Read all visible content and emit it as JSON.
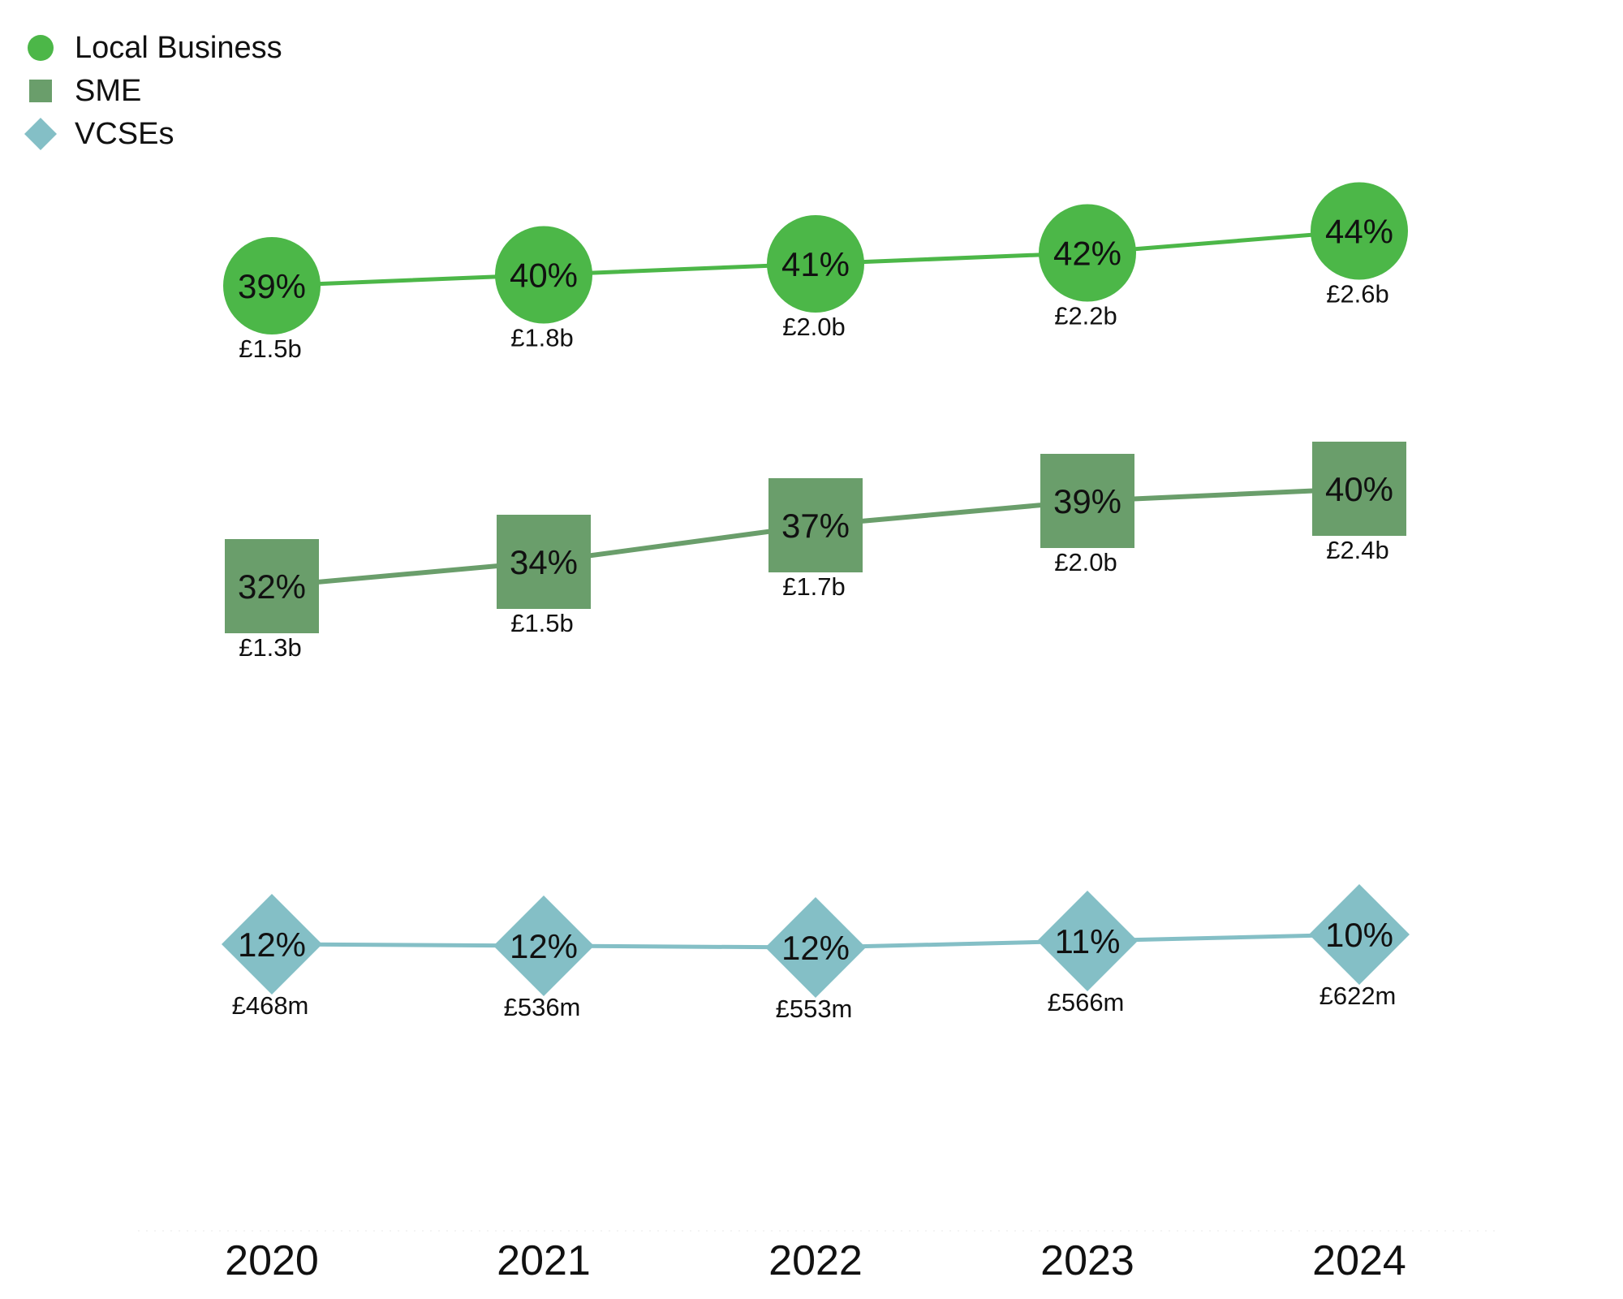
{
  "chart_data": {
    "type": "line",
    "x": [
      "2020",
      "2021",
      "2022",
      "2023",
      "2024"
    ],
    "legend_position": "top-left",
    "grid": false,
    "series": [
      {
        "name": "Local Business",
        "marker": "circle",
        "color": "#4cb748",
        "values": [
          39,
          40,
          41,
          42,
          44
        ],
        "labels": [
          "39%",
          "40%",
          "41%",
          "42%",
          "44%"
        ],
        "spend": [
          "£1.5b",
          "£1.8b",
          "£2.0b",
          "£2.2b",
          "£2.6b"
        ]
      },
      {
        "name": "SME",
        "marker": "square",
        "color": "#6a9e6b",
        "values": [
          32,
          34,
          37,
          39,
          40
        ],
        "labels": [
          "32%",
          "34%",
          "37%",
          "39%",
          "40%"
        ],
        "spend": [
          "£1.3b",
          "£1.5b",
          "£1.7b",
          "£2.0b",
          "£2.4b"
        ]
      },
      {
        "name": "VCSEs",
        "marker": "diamond",
        "color": "#84bfc6",
        "values": [
          12,
          12,
          12,
          11,
          10
        ],
        "labels": [
          "12%",
          "12%",
          "12%",
          "11%",
          "10%"
        ],
        "spend": [
          "£468m",
          "£536m",
          "£553m",
          "£566m",
          "£622m"
        ]
      }
    ]
  }
}
